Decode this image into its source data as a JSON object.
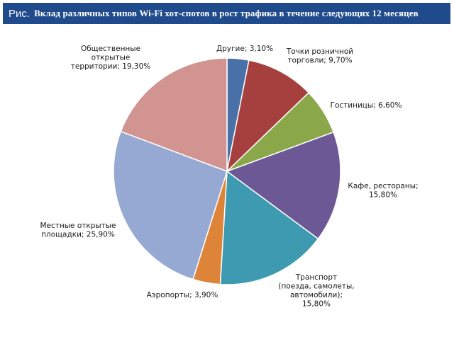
{
  "header": {
    "prefix": "Рис.",
    "title": "Вклад различных типов Wi-Fi хот-спотов в рост трафика в течение следующих 12 месяцев"
  },
  "chart_data": {
    "type": "pie",
    "title": "Вклад различных типов Wi-Fi хот-спотов в рост трафика в течение следующих 12 месяцев",
    "slices": [
      {
        "name": "Другие",
        "value": 3.1,
        "color": "#4a70a8",
        "label_lines": [
          "Другие; 3,10%"
        ]
      },
      {
        "name": "Точки розничной торговли",
        "value": 9.7,
        "color": "#a5403f",
        "label_lines": [
          "Точки розничной",
          "торговли; 9,70%"
        ]
      },
      {
        "name": "Гостиницы",
        "value": 6.6,
        "color": "#8aa84a",
        "label_lines": [
          "Гостиницы; 6,60%"
        ]
      },
      {
        "name": "Кафе, рестораны",
        "value": 15.8,
        "color": "#6c5894",
        "label_lines": [
          "Кафе, рестораны;",
          "15,80%"
        ]
      },
      {
        "name": "Транспорт (поезда, самолеты, автомобили)",
        "value": 15.8,
        "color": "#3e9ab0",
        "label_lines": [
          "Транспорт",
          "(поезда, самолеты,",
          "автомобили);",
          "15,80%"
        ]
      },
      {
        "name": "Аэропорты",
        "value": 3.9,
        "color": "#de8438",
        "label_lines": [
          "Аэропорты; 3,90%"
        ]
      },
      {
        "name": "Местные открытые площадки",
        "value": 25.9,
        "color": "#96a9d2",
        "label_lines": [
          "Местные открытые",
          "площадки; 25,90%"
        ]
      },
      {
        "name": "Общественные открытые территории",
        "value": 19.3,
        "color": "#d19491",
        "label_lines": [
          "Общественные",
          "открытые",
          "территории; 19,30%"
        ]
      }
    ]
  }
}
